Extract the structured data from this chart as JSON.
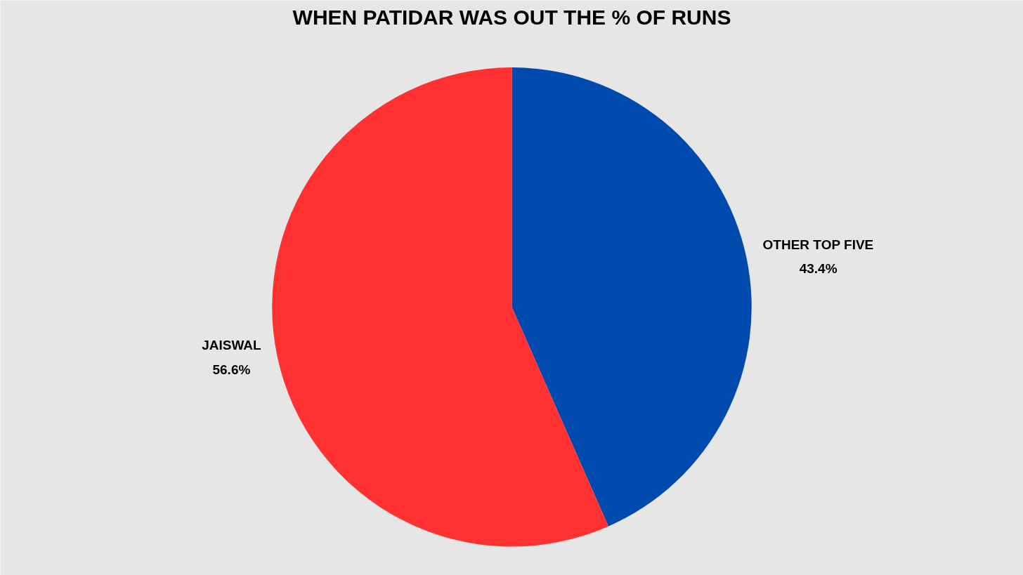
{
  "chart_data": {
    "type": "pie",
    "title": "WHEN PATIDAR WAS OUT THE % OF RUNS",
    "categories": [
      "OTHER TOP FIVE",
      "JAISWAL"
    ],
    "values": [
      43.4,
      56.6
    ],
    "colors": [
      "#004aad",
      "#ff3131"
    ],
    "value_labels": [
      "43.4%",
      "56.6%"
    ]
  }
}
